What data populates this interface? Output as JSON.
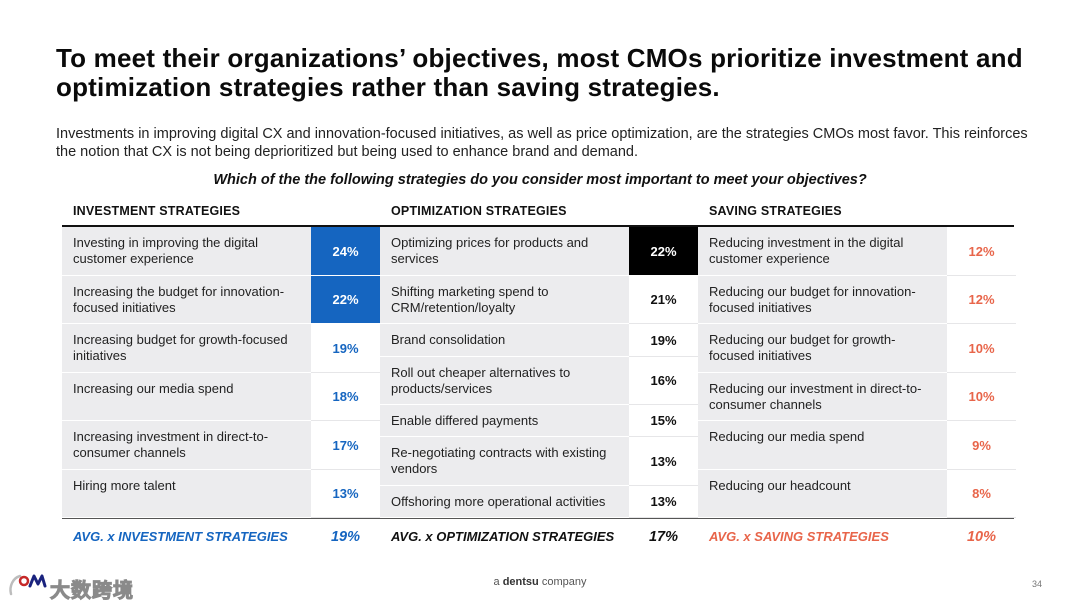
{
  "title": "To meet their organizations’ objectives, most CMOs prioritize investment and optimization strategies rather than saving strategies.",
  "subtitle": "Investments in improving digital CX and innovation-focused initiatives, as well as price optimization, are the strategies CMOs most favor. This reinforces the notion that CX is not being deprioritized but being used to enhance brand and demand.",
  "question": "Which of the the following strategies do you consider most important to meet your objectives?",
  "colors": {
    "blue": "#1565c0",
    "black": "#000000",
    "red": "#e8654a",
    "row_bg": "#ececee"
  },
  "columns": [
    {
      "header": "INVESTMENT STRATEGIES",
      "rows": [
        {
          "label": "Investing in improving the digital customer experience",
          "value": "24%"
        },
        {
          "label": "Increasing the budget for innovation-focused initiatives",
          "value": "22%"
        },
        {
          "label": "Increasing budget for growth-focused initiatives",
          "value": "19%"
        },
        {
          "label": "Increasing our media spend",
          "value": "18%"
        },
        {
          "label": "Increasing investment in direct-to-consumer channels",
          "value": "17%"
        },
        {
          "label": "Hiring more talent",
          "value": "13%"
        }
      ],
      "avg_label": "AVG. x INVESTMENT STRATEGIES",
      "avg_value": "19%"
    },
    {
      "header": "OPTIMIZATION STRATEGIES",
      "rows": [
        {
          "label": "Optimizing prices for products and services",
          "value": "22%"
        },
        {
          "label": "Shifting marketing spend to CRM/retention/loyalty",
          "value": "21%"
        },
        {
          "label": "Brand consolidation",
          "value": "19%"
        },
        {
          "label": "Roll out cheaper alternatives to products/services",
          "value": "16%"
        },
        {
          "label": "Enable differed payments",
          "value": "15%"
        },
        {
          "label": "Re-negotiating contracts with existing vendors",
          "value": "13%"
        },
        {
          "label": "Offshoring more operational activities",
          "value": "13%"
        }
      ],
      "avg_label": "AVG. x OPTIMIZATION STRATEGIES",
      "avg_value": "17%"
    },
    {
      "header": "SAVING STRATEGIES",
      "rows": [
        {
          "label": "Reducing investment in the digital customer experience",
          "value": "12%"
        },
        {
          "label": "Reducing our budget for innovation-focused initiatives",
          "value": "12%"
        },
        {
          "label": "Reducing our budget for growth-focused initiatives",
          "value": "10%"
        },
        {
          "label": "Reducing our investment in direct-to-consumer channels",
          "value": "10%"
        },
        {
          "label": "Reducing our media spend",
          "value": "9%"
        },
        {
          "label": "Reducing our headcount",
          "value": "8%"
        }
      ],
      "avg_label": "AVG. x SAVING STRATEGIES",
      "avg_value": "10%"
    }
  ],
  "footer": {
    "prefix": "a",
    "brand": "dentsu",
    "suffix": "company"
  },
  "page_number": "34",
  "watermark_text": "大数跨境"
}
